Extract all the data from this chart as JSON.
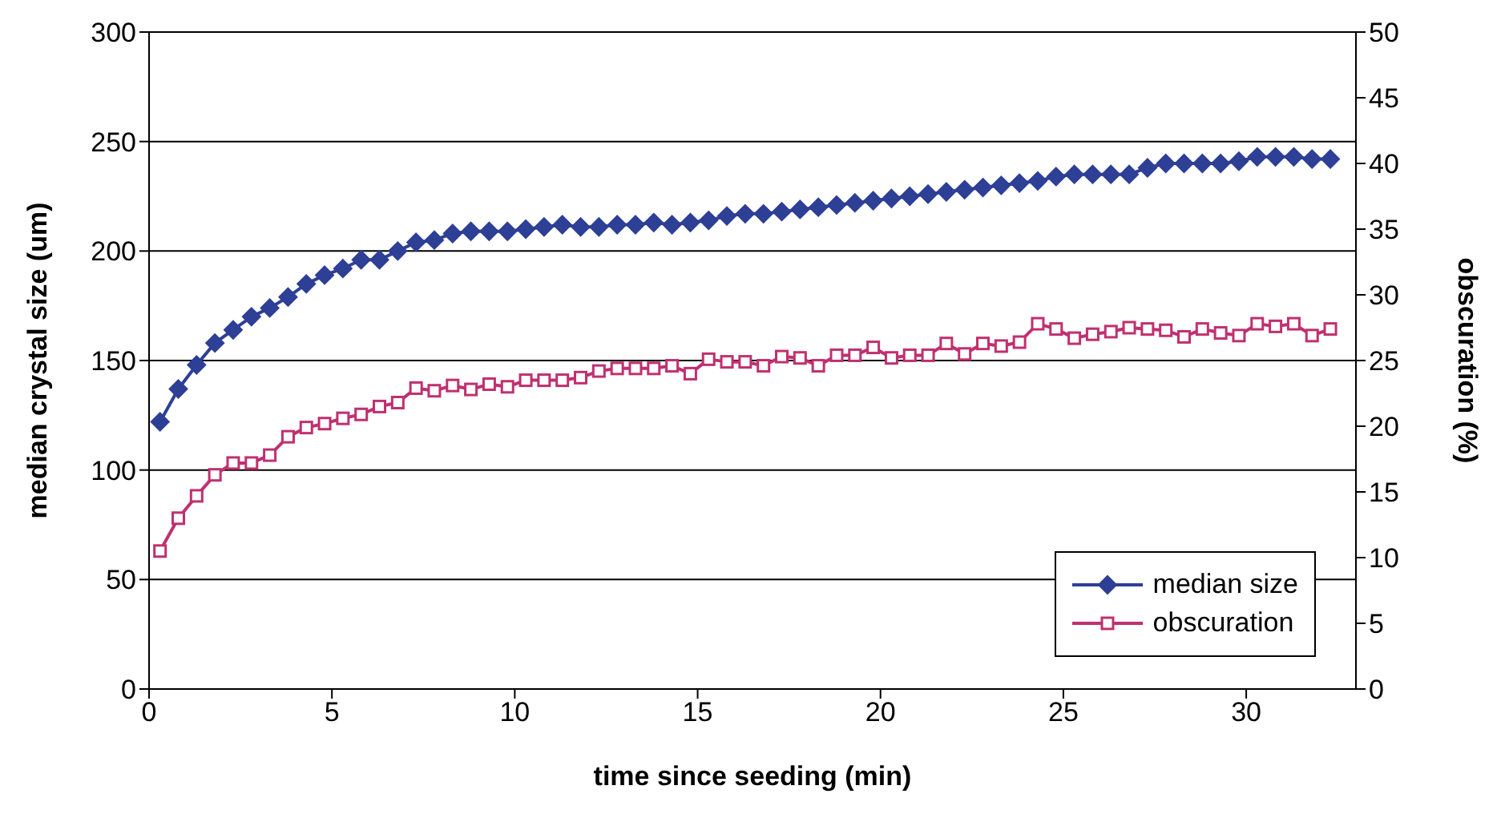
{
  "chart_data": {
    "type": "line",
    "xlabel": "time since seeding (min)",
    "ylabel": "median crystal size (um)",
    "y2label": "obscuration (%)",
    "x": [
      0.3,
      0.8,
      1.3,
      1.8,
      2.3,
      2.8,
      3.3,
      3.8,
      4.3,
      4.8,
      5.3,
      5.8,
      6.3,
      6.8,
      7.3,
      7.8,
      8.3,
      8.8,
      9.3,
      9.8,
      10.3,
      10.8,
      11.3,
      11.8,
      12.3,
      12.8,
      13.3,
      13.8,
      14.3,
      14.8,
      15.3,
      15.8,
      16.3,
      16.8,
      17.3,
      17.8,
      18.3,
      18.8,
      19.3,
      19.8,
      20.3,
      20.8,
      21.3,
      21.8,
      22.3,
      22.8,
      23.3,
      23.8,
      24.3,
      24.8,
      25.3,
      25.8,
      26.3,
      26.8,
      27.3,
      27.8,
      28.3,
      28.8,
      29.3,
      29.8,
      30.3,
      30.8,
      31.3,
      31.8,
      32.3
    ],
    "series": [
      {
        "name": "median size",
        "color": "#2e3f96",
        "marker": "diamond",
        "values": [
          122,
          137,
          148,
          158,
          164,
          170,
          174,
          179,
          185,
          189,
          192,
          196,
          196,
          200,
          204,
          205,
          208,
          209,
          209,
          209,
          210,
          211,
          212,
          211,
          211,
          212,
          212,
          213,
          212,
          213,
          214,
          216,
          217,
          217,
          218,
          219,
          220,
          221,
          222,
          223,
          224,
          225,
          226,
          227,
          228,
          229,
          230,
          231,
          232,
          234,
          235,
          235,
          235,
          235,
          238,
          240,
          240,
          240,
          240,
          241,
          243,
          243,
          243,
          242,
          242
        ]
      },
      {
        "name": "obscuration",
        "color": "#c03070",
        "marker": "square",
        "axis": "y2",
        "values": [
          10.5,
          13,
          14.7,
          16.3,
          17.2,
          17.2,
          17.8,
          19.2,
          19.9,
          20.2,
          20.6,
          20.9,
          21.5,
          21.8,
          22.9,
          22.7,
          23.1,
          22.8,
          23.2,
          23,
          23.5,
          23.5,
          23.5,
          23.7,
          24.2,
          24.4,
          24.4,
          24.4,
          24.6,
          24,
          25.1,
          24.9,
          24.9,
          24.6,
          25.3,
          25.2,
          24.6,
          25.4,
          25.4,
          26,
          25.2,
          25.4,
          25.4,
          26.3,
          25.5,
          26.3,
          26.1,
          26.4,
          27.8,
          27.4,
          26.7,
          27,
          27.2,
          27.5,
          27.4,
          27.3,
          26.8,
          27.4,
          27.1,
          26.9,
          27.8,
          27.6,
          27.8,
          26.9,
          27.4
        ]
      }
    ],
    "xlim": [
      0,
      33
    ],
    "xticks": [
      0,
      5,
      10,
      15,
      20,
      25,
      30
    ],
    "ylim": [
      0,
      300
    ],
    "yticks": [
      0,
      50,
      100,
      150,
      200,
      250,
      300
    ],
    "y2lim": [
      0,
      50
    ],
    "y2ticks": [
      0,
      5,
      10,
      15,
      20,
      25,
      30,
      35,
      40,
      45,
      50
    ],
    "grid": "y",
    "legend": "bottom right",
    "line_style": "solid"
  }
}
